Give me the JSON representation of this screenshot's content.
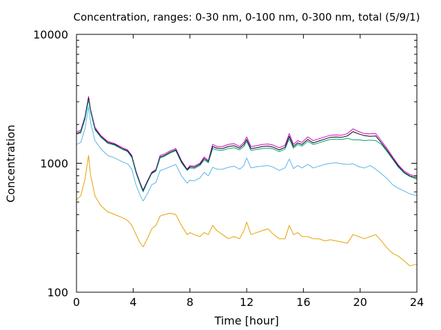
{
  "chart_data": {
    "type": "line",
    "title": "Concentration, ranges: 0-30 nm, 0-100 nm, 0-300 nm, total (5/9/1)",
    "xlabel": "Time [hour]",
    "ylabel": "Concentration",
    "xlim": [
      0,
      24
    ],
    "ylim": [
      100,
      10000
    ],
    "yscale": "log",
    "grid": false,
    "x_ticks": [
      "0",
      "4",
      "8",
      "12",
      "16",
      "20",
      "24"
    ],
    "x_tick_values": [
      0,
      4,
      8,
      12,
      16,
      20,
      24
    ],
    "y_ticks": [
      "100",
      "1000",
      "10000"
    ],
    "y_tick_values": [
      100,
      1000,
      10000
    ],
    "x": [
      0,
      0.3,
      0.6,
      0.85,
      1.0,
      1.3,
      1.7,
      2.2,
      2.7,
      3.2,
      3.6,
      3.9,
      4.2,
      4.5,
      4.7,
      5.0,
      5.3,
      5.6,
      5.9,
      6.2,
      6.6,
      7.0,
      7.4,
      7.8,
      8.0,
      8.3,
      8.7,
      9.0,
      9.3,
      9.6,
      9.9,
      10.3,
      10.7,
      11.1,
      11.5,
      11.8,
      12.0,
      12.3,
      12.7,
      13.1,
      13.5,
      13.9,
      14.3,
      14.7,
      15.0,
      15.3,
      15.6,
      15.9,
      16.3,
      16.7,
      17.1,
      17.5,
      17.9,
      18.3,
      18.7,
      19.1,
      19.5,
      19.9,
      20.3,
      20.7,
      21.1,
      21.5,
      21.9,
      22.3,
      22.7,
      23.1,
      23.5,
      24.0
    ],
    "series": [
      {
        "color": "#cc00cc",
        "values": [
          1750,
          1800,
          2300,
          3300,
          2600,
          1900,
          1650,
          1480,
          1420,
          1330,
          1270,
          1150,
          870,
          700,
          620,
          730,
          850,
          900,
          1150,
          1180,
          1250,
          1300,
          1050,
          900,
          960,
          950,
          1000,
          1120,
          1050,
          1400,
          1350,
          1350,
          1400,
          1420,
          1350,
          1450,
          1600,
          1350,
          1370,
          1400,
          1410,
          1380,
          1320,
          1380,
          1700,
          1400,
          1500,
          1450,
          1600,
          1500,
          1550,
          1600,
          1650,
          1660,
          1650,
          1700,
          1850,
          1760,
          1700,
          1690,
          1700,
          1490,
          1300,
          1120,
          970,
          870,
          820,
          790
        ]
      },
      {
        "color": "#000000",
        "values": [
          1700,
          1750,
          2250,
          3200,
          2550,
          1850,
          1620,
          1450,
          1400,
          1300,
          1250,
          1130,
          850,
          690,
          610,
          720,
          840,
          880,
          1120,
          1150,
          1220,
          1270,
          1030,
          890,
          940,
          930,
          980,
          1090,
          1030,
          1350,
          1310,
          1300,
          1350,
          1370,
          1310,
          1400,
          1530,
          1300,
          1320,
          1350,
          1360,
          1330,
          1270,
          1330,
          1620,
          1350,
          1440,
          1400,
          1530,
          1440,
          1490,
          1540,
          1590,
          1600,
          1590,
          1630,
          1760,
          1690,
          1640,
          1620,
          1630,
          1440,
          1260,
          1090,
          950,
          850,
          800,
          770
        ]
      },
      {
        "color": "#009e73",
        "values": [
          1680,
          1720,
          2200,
          3100,
          2500,
          1820,
          1600,
          1430,
          1380,
          1290,
          1230,
          1110,
          840,
          680,
          600,
          710,
          830,
          870,
          1100,
          1130,
          1200,
          1250,
          1010,
          880,
          920,
          910,
          960,
          1060,
          1010,
          1300,
          1270,
          1260,
          1300,
          1320,
          1270,
          1350,
          1480,
          1260,
          1280,
          1300,
          1310,
          1290,
          1230,
          1290,
          1550,
          1310,
          1400,
          1360,
          1480,
          1400,
          1440,
          1490,
          1530,
          1540,
          1530,
          1560,
          1520,
          1520,
          1500,
          1510,
          1500,
          1400,
          1230,
          1070,
          930,
          840,
          790,
          750
        ]
      },
      {
        "color": "#56b4e9",
        "values": [
          1400,
          1450,
          1850,
          2750,
          2050,
          1500,
          1300,
          1150,
          1100,
          1030,
          990,
          900,
          680,
          560,
          510,
          580,
          680,
          710,
          880,
          900,
          940,
          980,
          800,
          700,
          740,
          730,
          770,
          850,
          800,
          930,
          900,
          900,
          930,
          950,
          900,
          960,
          1100,
          920,
          940,
          950,
          960,
          930,
          880,
          920,
          1080,
          910,
          960,
          920,
          980,
          920,
          950,
          980,
          1000,
          1010,
          990,
          980,
          990,
          940,
          920,
          960,
          900,
          830,
          760,
          680,
          640,
          610,
          580,
          560
        ]
      },
      {
        "color": "#e69f00",
        "values": [
          520,
          560,
          750,
          1150,
          800,
          560,
          470,
          420,
          400,
          380,
          360,
          330,
          280,
          240,
          225,
          260,
          310,
          330,
          390,
          400,
          410,
          400,
          330,
          280,
          290,
          280,
          270,
          290,
          280,
          330,
          300,
          280,
          260,
          270,
          260,
          300,
          350,
          280,
          290,
          300,
          310,
          280,
          260,
          260,
          330,
          280,
          290,
          270,
          270,
          260,
          260,
          250,
          255,
          250,
          245,
          240,
          280,
          270,
          260,
          270,
          280,
          250,
          220,
          200,
          190,
          175,
          160,
          165
        ]
      }
    ]
  }
}
